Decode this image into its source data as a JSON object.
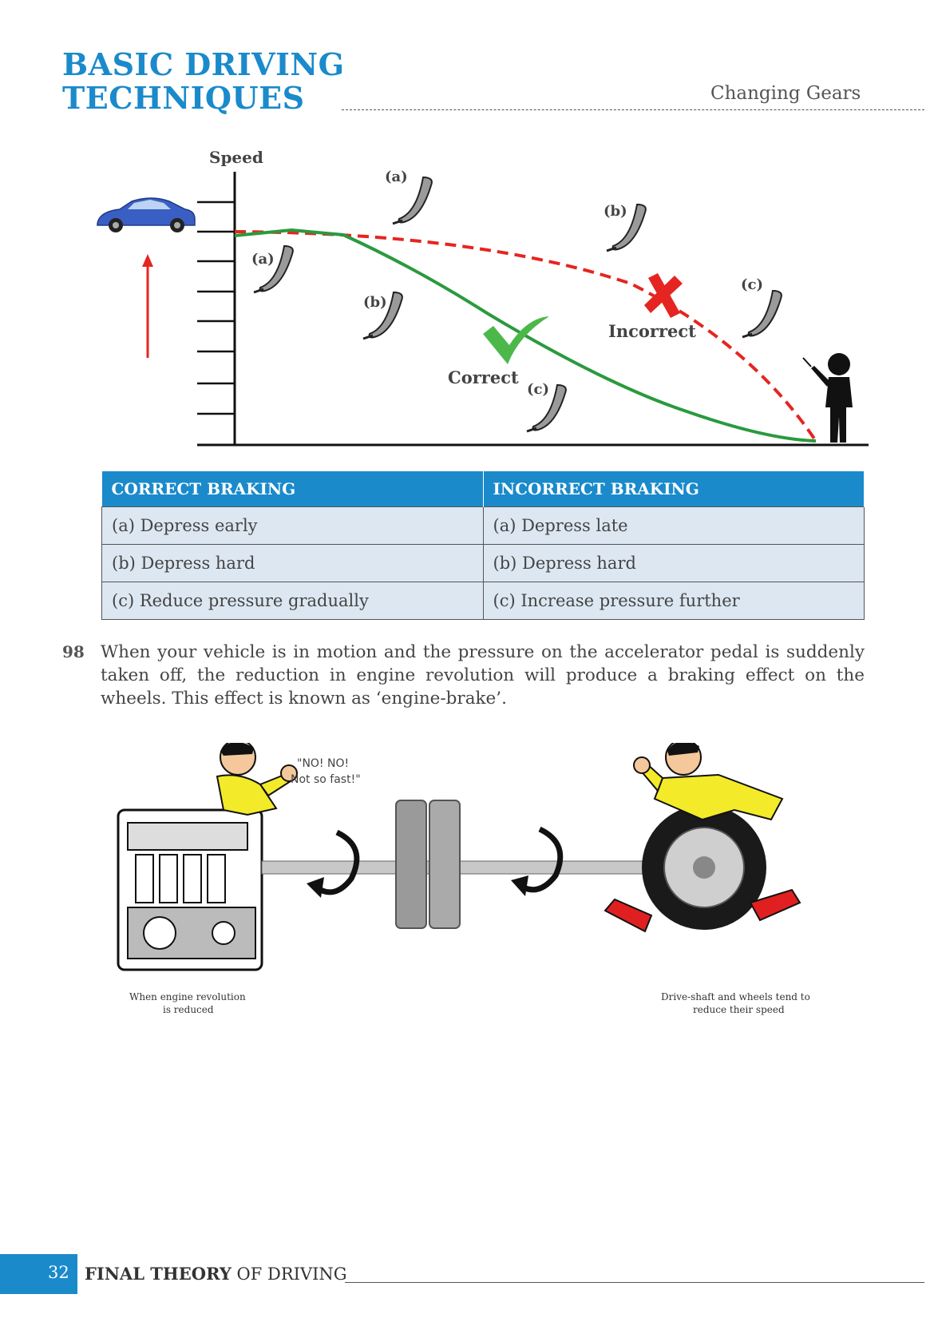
{
  "header": {
    "title_line1": "BASIC DRIVING",
    "title_line2": "TECHNIQUES",
    "section": "Changing Gears"
  },
  "diagram": {
    "y_axis_label": "Speed",
    "correct_label": "Correct",
    "incorrect_label": "Incorrect",
    "correct_pedals": [
      "(a)",
      "(b)",
      "(c)"
    ],
    "incorrect_pedals": [
      "(a)",
      "(b)",
      "(c)"
    ],
    "colors": {
      "correct": "#2a9a3e",
      "incorrect": "#e52521",
      "car": "#3a5fc4"
    }
  },
  "table": {
    "headers": [
      "CORRECT BRAKING",
      "INCORRECT  BRAKING"
    ],
    "rows": [
      [
        "(a)  Depress early",
        "(a)  Depress late"
      ],
      [
        "(b)  Depress hard",
        "(b)  Depress hard"
      ],
      [
        "(c)   Reduce pressure gradually",
        "(c)  Increase pressure further"
      ]
    ]
  },
  "item": {
    "number": "98",
    "text": "When your vehicle is in motion and the pressure on the accelerator pedal is suddenly taken off, the reduction in engine revolution will produce a braking effect on the wheels. This effect is known as ‘engine-brake’."
  },
  "illustration": {
    "speech": [
      "\"NO! NO!",
      "Not so fast!\""
    ],
    "left_caption": [
      "When engine revolution",
      "is reduced"
    ],
    "right_caption": [
      "Drive-shaft and wheels tend to",
      "reduce their speed"
    ]
  },
  "footer": {
    "page_number": "32",
    "title_bold": "FINAL THEORY",
    "title_rest": " OF DRIVING"
  }
}
